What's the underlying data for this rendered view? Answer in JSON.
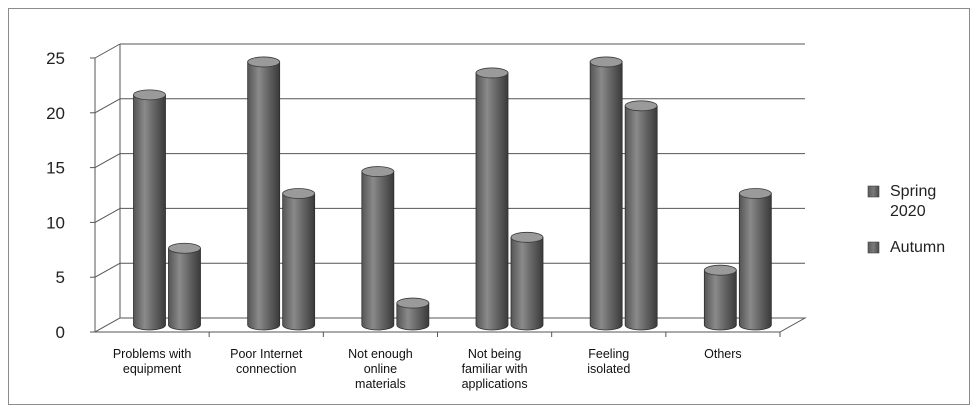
{
  "chart_data": {
    "type": "bar",
    "categories": [
      [
        "Problems with",
        "equipment"
      ],
      [
        "Poor Internet",
        "connection"
      ],
      [
        "Not enough",
        "online",
        "materials"
      ],
      [
        "Not being",
        "familiar with",
        "applications"
      ],
      [
        "Feeling",
        "isolated"
      ],
      [
        "Others"
      ]
    ],
    "series": [
      {
        "name": [
          "Spring",
          "2020"
        ],
        "values": [
          21,
          24,
          14,
          23,
          24,
          5
        ]
      },
      {
        "name": [
          "Autumn"
        ],
        "values": [
          7,
          12,
          2,
          8,
          20,
          12
        ]
      }
    ],
    "ylim": [
      0,
      25
    ],
    "yticks": [
      0,
      5,
      10,
      15,
      20,
      25
    ],
    "grid": true,
    "legend_position": "right",
    "colors": {
      "bar": "#6e6e6e",
      "bar_light": "#9a9a9a",
      "bar_dark": "#3f3f3f",
      "grid": "#555555",
      "floor": "#ffffff"
    }
  }
}
